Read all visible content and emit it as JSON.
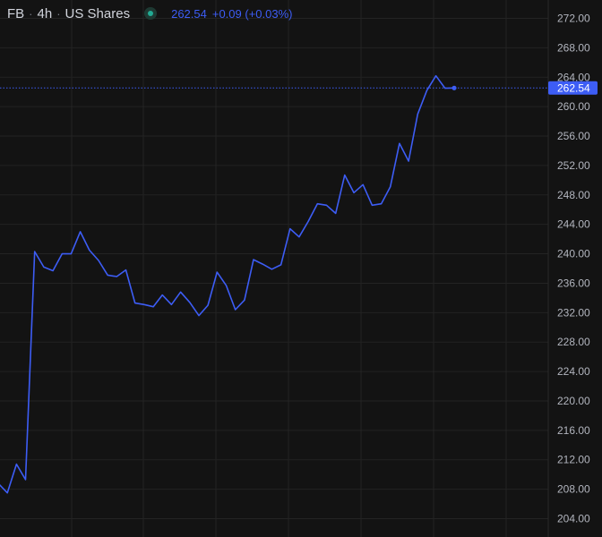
{
  "header": {
    "symbol": "FB",
    "interval": "4h",
    "market": "US Shares",
    "last_price": "262.54",
    "change": "+0.09 (+0.03%)"
  },
  "colors": {
    "background": "#131313",
    "line": "#3d5df5",
    "grid": "#232323",
    "axis_text": "#b2b5be",
    "status": "#22ab94"
  },
  "chart_data": {
    "type": "line",
    "ylim": [
      201.5,
      274.5
    ],
    "yticks": [
      "204.00",
      "208.00",
      "212.00",
      "216.00",
      "220.00",
      "224.00",
      "228.00",
      "232.00",
      "236.00",
      "240.00",
      "244.00",
      "248.00",
      "252.00",
      "256.00",
      "260.00",
      "264.00",
      "268.00",
      "272.00"
    ],
    "last_value": 262.54,
    "last_label": "262.54",
    "series": [
      {
        "values": [
          208.8,
          207.5,
          211.4,
          209.3,
          240.3,
          238.2,
          237.7,
          240.0,
          240.0,
          243.0,
          240.5,
          239.1,
          237.1,
          236.9,
          237.8,
          233.3,
          233.1,
          232.8,
          234.4,
          233.1,
          234.8,
          233.4,
          231.6,
          233.0,
          237.5,
          235.7,
          232.4,
          233.7,
          239.2,
          238.6,
          237.9,
          238.5,
          243.4,
          242.3,
          244.4,
          246.8,
          246.6,
          245.5,
          250.7,
          248.3,
          249.4,
          246.6,
          246.8,
          249.1,
          255.0,
          252.6,
          259.0,
          262.2,
          264.2,
          262.5,
          262.54
        ]
      }
    ]
  }
}
